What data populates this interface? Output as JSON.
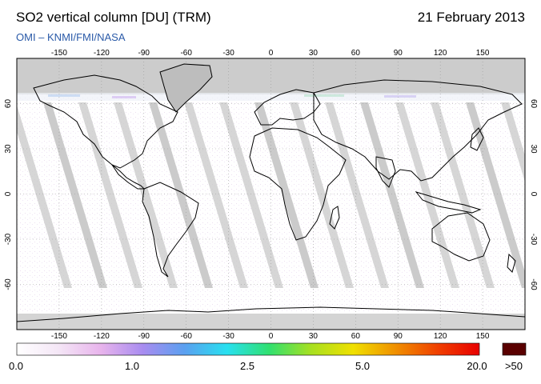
{
  "header": {
    "title": "SO2 vertical column [DU] (TRM)",
    "date": "21 February 2013",
    "source": "OMI  –  KNMI/FMI/NASA"
  },
  "map": {
    "projection": "equirectangular",
    "lon_range": [
      -180,
      180
    ],
    "lat_range": [
      -90,
      90
    ],
    "lon_ticks": [
      -150,
      -120,
      -90,
      -60,
      -30,
      0,
      30,
      60,
      90,
      120,
      150
    ],
    "lat_ticks": [
      60,
      30,
      0,
      -30,
      -60
    ],
    "gridlines": true,
    "colors": {
      "no_data_polar": "#cccccc",
      "orbit_gap": "#c8c8c8",
      "coastline": "#000000"
    }
  },
  "colorbar": {
    "labels": [
      "0.0",
      "1.0",
      "2.5",
      "5.0",
      "20.0"
    ],
    "overflow_label": ">50",
    "overflow_color": "#5a0000",
    "stops": [
      "#ffffff",
      "#f4e6f6",
      "#e8b4ec",
      "#a88cf0",
      "#5aa0f0",
      "#28e0f0",
      "#30e070",
      "#a8e020",
      "#f0e000",
      "#f09000",
      "#f04000",
      "#e80000"
    ]
  }
}
